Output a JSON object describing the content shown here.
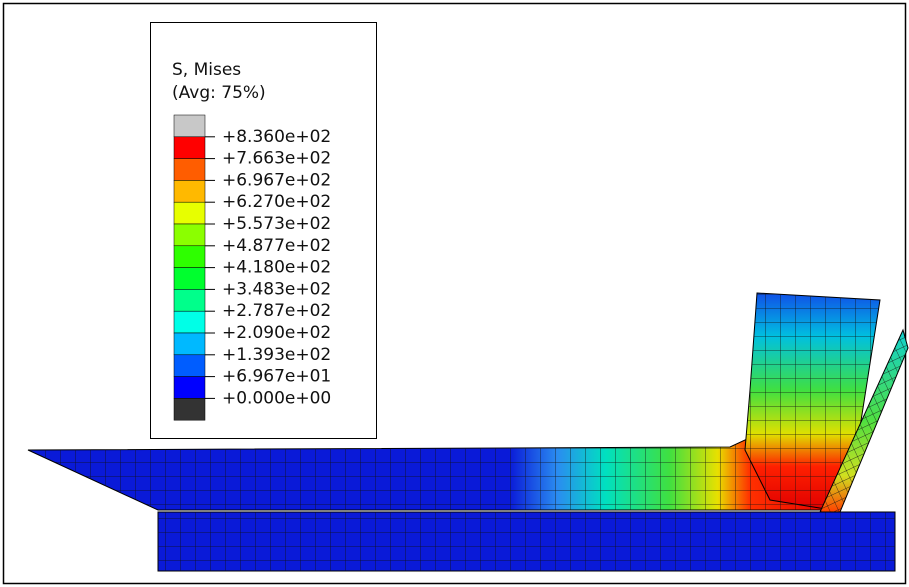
{
  "legend": {
    "title": "S, Mises",
    "subtitle": "(Avg: 75%)",
    "labels": [
      "+8.360e+02",
      "+7.663e+02",
      "+6.967e+02",
      "+6.270e+02",
      "+5.573e+02",
      "+4.877e+02",
      "+4.180e+02",
      "+3.483e+02",
      "+2.787e+02",
      "+2.090e+02",
      "+1.393e+02",
      "+6.967e+01",
      "+0.000e+00"
    ]
  }
}
